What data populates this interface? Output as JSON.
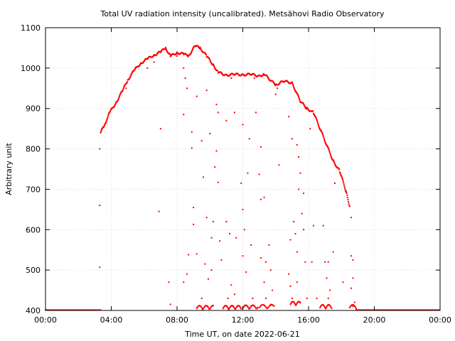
{
  "chart_data": {
    "type": "scatter",
    "title": "Total UV radiation intensity (uncalibrated). Metsähovi Radio Observatory",
    "xlabel": "Time UT, on date 2022-06-21",
    "ylabel": "Arbitrary unit",
    "xlim": [
      0,
      24
    ],
    "ylim": [
      400,
      1100
    ],
    "x_ticks": [
      0,
      4,
      8,
      12,
      16,
      20,
      24
    ],
    "x_tick_labels": [
      "00:00",
      "04:00",
      "08:00",
      "12:00",
      "16:00",
      "20:00",
      "00:00"
    ],
    "y_ticks": [
      400,
      500,
      600,
      700,
      800,
      900,
      1000,
      1100
    ],
    "y_tick_labels": [
      "400",
      "500",
      "600",
      "700",
      "800",
      "900",
      "1000",
      "1100"
    ],
    "grid": true,
    "colors": {
      "points": "#ff0000",
      "grid": "#cccccc",
      "axis": "#000000"
    },
    "envelope": [
      {
        "x": 3.35,
        "y": 840
      },
      {
        "x": 3.6,
        "y": 860
      },
      {
        "x": 3.9,
        "y": 890
      },
      {
        "x": 4.3,
        "y": 915
      },
      {
        "x": 4.7,
        "y": 945
      },
      {
        "x": 5.0,
        "y": 970
      },
      {
        "x": 5.4,
        "y": 995
      },
      {
        "x": 5.8,
        "y": 1012
      },
      {
        "x": 6.2,
        "y": 1023
      },
      {
        "x": 6.6,
        "y": 1032
      },
      {
        "x": 7.0,
        "y": 1040
      },
      {
        "x": 7.3,
        "y": 1050
      },
      {
        "x": 7.6,
        "y": 1030
      },
      {
        "x": 8.0,
        "y": 1038
      },
      {
        "x": 8.4,
        "y": 1035
      },
      {
        "x": 8.7,
        "y": 1030
      },
      {
        "x": 9.1,
        "y": 1055
      },
      {
        "x": 9.4,
        "y": 1050
      },
      {
        "x": 9.8,
        "y": 1030
      },
      {
        "x": 10.2,
        "y": 1008
      },
      {
        "x": 10.5,
        "y": 990
      },
      {
        "x": 11.0,
        "y": 982
      },
      {
        "x": 11.5,
        "y": 985
      },
      {
        "x": 12.0,
        "y": 983
      },
      {
        "x": 12.5,
        "y": 985
      },
      {
        "x": 13.0,
        "y": 980
      },
      {
        "x": 13.3,
        "y": 985
      },
      {
        "x": 14.0,
        "y": 958
      },
      {
        "x": 14.5,
        "y": 968
      },
      {
        "x": 15.0,
        "y": 963
      },
      {
        "x": 15.5,
        "y": 918
      },
      {
        "x": 15.9,
        "y": 900
      },
      {
        "x": 16.3,
        "y": 890
      },
      {
        "x": 17.5,
        "y": 770
      },
      {
        "x": 17.9,
        "y": 745
      },
      {
        "x": 18.3,
        "y": 692
      },
      {
        "x": 18.5,
        "y": 658
      }
    ],
    "scatter": [
      {
        "x": 3.3,
        "y": 800
      },
      {
        "x": 3.3,
        "y": 660
      },
      {
        "x": 3.3,
        "y": 507
      },
      {
        "x": 4.9,
        "y": 950
      },
      {
        "x": 6.2,
        "y": 1000
      },
      {
        "x": 6.6,
        "y": 1015
      },
      {
        "x": 7.0,
        "y": 850
      },
      {
        "x": 6.9,
        "y": 645
      },
      {
        "x": 7.5,
        "y": 470
      },
      {
        "x": 7.6,
        "y": 415
      },
      {
        "x": 8.0,
        "y": 1030
      },
      {
        "x": 8.4,
        "y": 1000
      },
      {
        "x": 8.5,
        "y": 975
      },
      {
        "x": 8.6,
        "y": 950
      },
      {
        "x": 8.4,
        "y": 885
      },
      {
        "x": 8.9,
        "y": 842
      },
      {
        "x": 8.9,
        "y": 802
      },
      {
        "x": 9.0,
        "y": 655
      },
      {
        "x": 9.0,
        "y": 613
      },
      {
        "x": 8.7,
        "y": 538
      },
      {
        "x": 8.6,
        "y": 490
      },
      {
        "x": 8.4,
        "y": 470
      },
      {
        "x": 9.2,
        "y": 540
      },
      {
        "x": 9.2,
        "y": 930
      },
      {
        "x": 9.5,
        "y": 820
      },
      {
        "x": 9.6,
        "y": 730
      },
      {
        "x": 9.8,
        "y": 630
      },
      {
        "x": 9.7,
        "y": 515
      },
      {
        "x": 9.9,
        "y": 478
      },
      {
        "x": 9.5,
        "y": 430
      },
      {
        "x": 9.8,
        "y": 945
      },
      {
        "x": 10.0,
        "y": 838
      },
      {
        "x": 10.2,
        "y": 620
      },
      {
        "x": 10.4,
        "y": 910
      },
      {
        "x": 10.5,
        "y": 890
      },
      {
        "x": 10.3,
        "y": 755
      },
      {
        "x": 10.5,
        "y": 717
      },
      {
        "x": 10.6,
        "y": 572
      },
      {
        "x": 10.7,
        "y": 525
      },
      {
        "x": 10.4,
        "y": 795
      },
      {
        "x": 10.1,
        "y": 580
      },
      {
        "x": 10.1,
        "y": 500
      },
      {
        "x": 11.0,
        "y": 620
      },
      {
        "x": 11.2,
        "y": 590
      },
      {
        "x": 11.0,
        "y": 870
      },
      {
        "x": 11.3,
        "y": 975
      },
      {
        "x": 11.5,
        "y": 890
      },
      {
        "x": 11.6,
        "y": 580
      },
      {
        "x": 11.3,
        "y": 463
      },
      {
        "x": 11.1,
        "y": 430
      },
      {
        "x": 11.5,
        "y": 440
      },
      {
        "x": 12.0,
        "y": 860
      },
      {
        "x": 11.9,
        "y": 715
      },
      {
        "x": 12.0,
        "y": 650
      },
      {
        "x": 12.1,
        "y": 600
      },
      {
        "x": 12.3,
        "y": 740
      },
      {
        "x": 12.4,
        "y": 825
      },
      {
        "x": 12.0,
        "y": 535
      },
      {
        "x": 12.2,
        "y": 495
      },
      {
        "x": 12.6,
        "y": 430
      },
      {
        "x": 12.7,
        "y": 975
      },
      {
        "x": 12.8,
        "y": 890
      },
      {
        "x": 12.5,
        "y": 562
      },
      {
        "x": 13.1,
        "y": 805
      },
      {
        "x": 13.0,
        "y": 737
      },
      {
        "x": 13.1,
        "y": 675
      },
      {
        "x": 13.1,
        "y": 530
      },
      {
        "x": 13.3,
        "y": 680
      },
      {
        "x": 13.4,
        "y": 520
      },
      {
        "x": 13.3,
        "y": 470
      },
      {
        "x": 13.4,
        "y": 430
      },
      {
        "x": 13.6,
        "y": 562
      },
      {
        "x": 13.7,
        "y": 500
      },
      {
        "x": 13.8,
        "y": 450
      },
      {
        "x": 13.7,
        "y": 415
      },
      {
        "x": 14.0,
        "y": 935
      },
      {
        "x": 14.1,
        "y": 950
      },
      {
        "x": 14.2,
        "y": 760
      },
      {
        "x": 14.8,
        "y": 880
      },
      {
        "x": 15.0,
        "y": 825
      },
      {
        "x": 14.9,
        "y": 575
      },
      {
        "x": 14.8,
        "y": 490
      },
      {
        "x": 14.9,
        "y": 460
      },
      {
        "x": 15.0,
        "y": 430
      },
      {
        "x": 15.1,
        "y": 620
      },
      {
        "x": 15.2,
        "y": 590
      },
      {
        "x": 15.3,
        "y": 810
      },
      {
        "x": 15.4,
        "y": 780
      },
      {
        "x": 15.5,
        "y": 740
      },
      {
        "x": 15.4,
        "y": 700
      },
      {
        "x": 15.3,
        "y": 545
      },
      {
        "x": 15.3,
        "y": 470
      },
      {
        "x": 15.6,
        "y": 640
      },
      {
        "x": 15.7,
        "y": 600
      },
      {
        "x": 15.8,
        "y": 520
      },
      {
        "x": 15.7,
        "y": 690
      },
      {
        "x": 15.9,
        "y": 430
      },
      {
        "x": 16.1,
        "y": 850
      },
      {
        "x": 16.2,
        "y": 520
      },
      {
        "x": 16.3,
        "y": 610
      },
      {
        "x": 16.5,
        "y": 430
      },
      {
        "x": 16.9,
        "y": 610
      },
      {
        "x": 17.0,
        "y": 520
      },
      {
        "x": 17.2,
        "y": 520
      },
      {
        "x": 17.1,
        "y": 480
      },
      {
        "x": 17.2,
        "y": 430
      },
      {
        "x": 17.3,
        "y": 450
      },
      {
        "x": 17.5,
        "y": 545
      },
      {
        "x": 17.6,
        "y": 715
      },
      {
        "x": 18.1,
        "y": 470
      },
      {
        "x": 18.6,
        "y": 630
      },
      {
        "x": 18.6,
        "y": 535
      },
      {
        "x": 18.7,
        "y": 525
      },
      {
        "x": 18.7,
        "y": 480
      },
      {
        "x": 18.6,
        "y": 455
      },
      {
        "x": 18.8,
        "y": 420
      },
      {
        "x": 18.7,
        "y": 410
      }
    ],
    "floor_segments": [
      {
        "x0": 0,
        "x1": 3.35,
        "y": 401
      },
      {
        "x0": 18.9,
        "x1": 24,
        "y": 401
      }
    ],
    "low_clusters": [
      {
        "x0": 9.2,
        "x1": 10.2,
        "y": 402,
        "count": 26
      },
      {
        "x0": 10.8,
        "x1": 11.9,
        "y": 402,
        "count": 30
      },
      {
        "x0": 12.0,
        "x1": 12.9,
        "y": 403,
        "count": 22
      },
      {
        "x0": 13.0,
        "x1": 13.9,
        "y": 404,
        "count": 18
      },
      {
        "x0": 14.9,
        "x1": 15.5,
        "y": 412,
        "count": 18
      },
      {
        "x0": 16.7,
        "x1": 17.4,
        "y": 404,
        "count": 20
      },
      {
        "x0": 18.5,
        "x1": 18.9,
        "y": 404,
        "count": 10
      }
    ]
  }
}
